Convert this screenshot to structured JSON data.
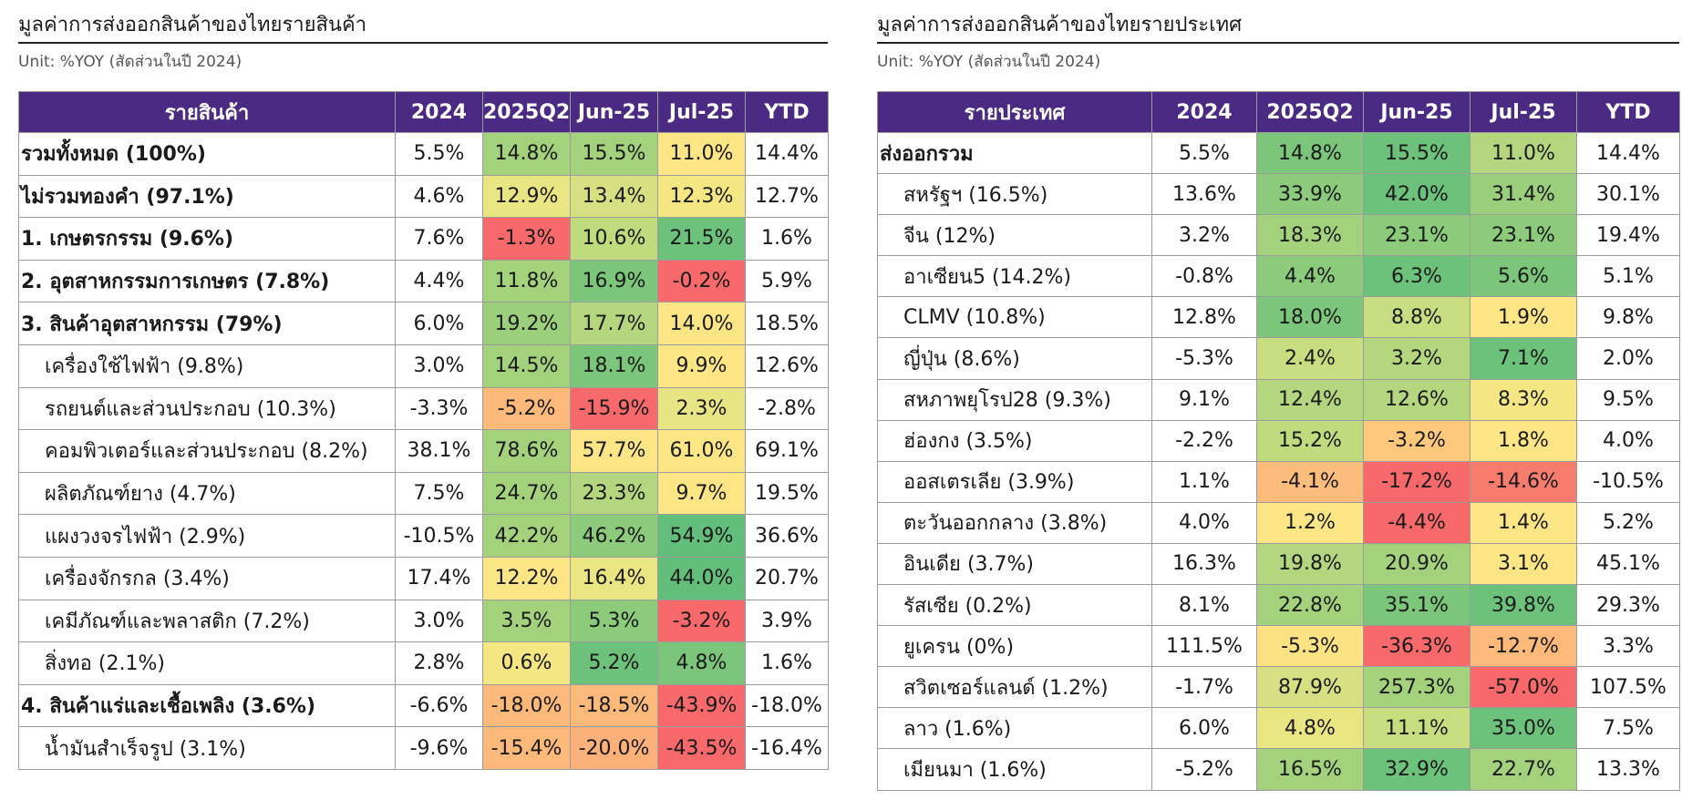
{
  "left": {
    "title": "มูลค่าการส่งออกสินค้าของไทยรายสินค้า",
    "unit": "Unit: %YOY (สัดส่วนในปี 2024)",
    "headers": [
      "รายสินค้า",
      "2024",
      "2025Q2",
      "Jun-25",
      "Jul-25",
      "YTD"
    ],
    "rows": [
      {
        "name": "รวมทั้งหมด (100%)",
        "values": [
          "5.5%",
          "14.8%",
          "15.5%",
          "11.0%",
          "14.4%"
        ],
        "colors": [
          "#ffffff",
          "#a4d27c",
          "#a4d27c",
          "#fbe584",
          "#ffffff"
        ]
      },
      {
        "name": "ไม่รวมทองคำ (97.1%)",
        "values": [
          "4.6%",
          "12.9%",
          "13.4%",
          "12.3%",
          "12.7%"
        ],
        "colors": [
          "#ffffff",
          "#e9e583",
          "#d6df81",
          "#f4e783",
          "#ffffff"
        ]
      },
      {
        "name": "1. เกษตรกรรม (9.6%)",
        "values": [
          "7.6%",
          "-1.3%",
          "10.6%",
          "21.5%",
          "1.6%"
        ],
        "colors": [
          "#ffffff",
          "#f8696b",
          "#c0da7e",
          "#6cc17b",
          "#ffffff"
        ]
      },
      {
        "name": "2. อุตสาหกรรมการเกษตร (7.8%)",
        "values": [
          "4.4%",
          "11.8%",
          "16.9%",
          "-0.2%",
          "5.9%"
        ],
        "colors": [
          "#ffffff",
          "#a4d27c",
          "#7cc67c",
          "#f8696b",
          "#ffffff"
        ]
      },
      {
        "name": "3. สินค้าอุตสาหกรรม (79%)",
        "values": [
          "6.0%",
          "19.2%",
          "17.7%",
          "14.0%",
          "18.5%"
        ],
        "colors": [
          "#ffffff",
          "#9ccf7c",
          "#b4d67e",
          "#fbe584",
          "#ffffff"
        ]
      },
      {
        "name": "เครื่องใช้ไฟฟ้า (9.8%)",
        "values": [
          "3.0%",
          "14.5%",
          "18.1%",
          "9.9%",
          "12.6%"
        ],
        "colors": [
          "#ffffff",
          "#a4d27c",
          "#7cc67c",
          "#fbe584",
          "#ffffff"
        ]
      },
      {
        "name": "รถยนต์และส่วนประกอบ (10.3%)",
        "values": [
          "-3.3%",
          "-5.2%",
          "-15.9%",
          "2.3%",
          "-2.8%"
        ],
        "colors": [
          "#ffffff",
          "#fcb97a",
          "#f8696b",
          "#e6e483",
          "#ffffff"
        ]
      },
      {
        "name": "คอมพิวเตอร์และส่วนประกอบ (8.2%)",
        "values": [
          "38.1%",
          "78.6%",
          "57.7%",
          "61.0%",
          "69.1%"
        ],
        "colors": [
          "#ffffff",
          "#a4d27c",
          "#fbe584",
          "#fbe584",
          "#ffffff"
        ]
      },
      {
        "name": "ผลิตภัณฑ์ยาง (4.7%)",
        "values": [
          "7.5%",
          "24.7%",
          "23.3%",
          "9.7%",
          "19.5%"
        ],
        "colors": [
          "#ffffff",
          "#a4d27c",
          "#b4d67e",
          "#fbe584",
          "#ffffff"
        ]
      },
      {
        "name": "แผงวงจรไฟฟ้า (2.9%)",
        "values": [
          "-10.5%",
          "42.2%",
          "46.2%",
          "54.9%",
          "36.6%"
        ],
        "colors": [
          "#ffffff",
          "#a4d27c",
          "#8ccb7c",
          "#63be7b",
          "#ffffff"
        ]
      },
      {
        "name": "เครื่องจักรกล (3.4%)",
        "values": [
          "17.4%",
          "12.2%",
          "16.4%",
          "44.0%",
          "20.7%"
        ],
        "colors": [
          "#ffffff",
          "#fbe584",
          "#e9e583",
          "#63be7b",
          "#ffffff"
        ]
      },
      {
        "name": "เคมีภัณฑ์และพลาสติก (7.2%)",
        "values": [
          "3.0%",
          "3.5%",
          "5.3%",
          "-3.2%",
          "3.9%"
        ],
        "colors": [
          "#ffffff",
          "#a4d27c",
          "#8ccb7c",
          "#f8696b",
          "#ffffff"
        ]
      },
      {
        "name": "สิ่งทอ (2.1%)",
        "values": [
          "2.8%",
          "0.6%",
          "5.2%",
          "4.8%",
          "1.6%"
        ],
        "colors": [
          "#ffffff",
          "#f4e783",
          "#6cc17b",
          "#7cc67c",
          "#ffffff"
        ]
      },
      {
        "name": "4. สินค้าแร่และเชื้อเพลิง (3.6%)",
        "values": [
          "-6.6%",
          "-18.0%",
          "-18.5%",
          "-43.9%",
          "-18.0%"
        ],
        "colors": [
          "#ffffff",
          "#fcb97a",
          "#fcb97a",
          "#f8696b",
          "#ffffff"
        ]
      },
      {
        "name": "น้ำมันสำเร็จรูป (3.1%)",
        "values": [
          "-9.6%",
          "-15.4%",
          "-20.0%",
          "-43.5%",
          "-16.4%"
        ],
        "colors": [
          "#ffffff",
          "#fcb97a",
          "#fcb07a",
          "#f8696b",
          "#ffffff"
        ]
      }
    ]
  },
  "right": {
    "title": "มูลค่าการส่งออกสินค้าของไทยรายประเทศ",
    "unit": "Unit: %YOY (สัดส่วนในปี 2024)",
    "headers": [
      "รายประเทศ",
      "2024",
      "2025Q2",
      "Jun-25",
      "Jul-25",
      "YTD"
    ],
    "rows": [
      {
        "name": "ส่งออกรวม",
        "values": [
          "5.5%",
          "14.8%",
          "15.5%",
          "11.0%",
          "14.4%"
        ],
        "colors": [
          "#ffffff",
          "#7cc67c",
          "#6cc17b",
          "#b4d67e",
          "#ffffff"
        ]
      },
      {
        "name": "สหรัฐฯ (16.5%)",
        "values": [
          "13.6%",
          "33.9%",
          "42.0%",
          "31.4%",
          "30.1%"
        ],
        "colors": [
          "#ffffff",
          "#8ccb7c",
          "#6cc17b",
          "#9ccf7c",
          "#ffffff"
        ]
      },
      {
        "name": "จีน (12%)",
        "values": [
          "3.2%",
          "18.3%",
          "23.1%",
          "23.1%",
          "19.4%"
        ],
        "colors": [
          "#ffffff",
          "#a4d27c",
          "#8ccb7c",
          "#8ccb7c",
          "#ffffff"
        ]
      },
      {
        "name": "อาเซียน5 (14.2%)",
        "values": [
          "-0.8%",
          "4.4%",
          "6.3%",
          "5.6%",
          "5.1%"
        ],
        "colors": [
          "#ffffff",
          "#8ccb7c",
          "#6cc17b",
          "#7cc67c",
          "#ffffff"
        ]
      },
      {
        "name": "CLMV (10.8%)",
        "values": [
          "12.8%",
          "18.0%",
          "8.8%",
          "1.9%",
          "9.8%"
        ],
        "colors": [
          "#ffffff",
          "#7cc67c",
          "#c8dc80",
          "#fbe584",
          "#ffffff"
        ]
      },
      {
        "name": "ญี่ปุ่น (8.6%)",
        "values": [
          "-5.3%",
          "2.4%",
          "3.2%",
          "7.1%",
          "2.0%"
        ],
        "colors": [
          "#ffffff",
          "#c8dc80",
          "#b4d67e",
          "#6cc17b",
          "#ffffff"
        ]
      },
      {
        "name": "สหภาพยุโรป28 (9.3%)",
        "values": [
          "9.1%",
          "12.4%",
          "12.6%",
          "8.3%",
          "9.5%"
        ],
        "colors": [
          "#ffffff",
          "#b4d67e",
          "#b4d67e",
          "#f4e783",
          "#ffffff"
        ]
      },
      {
        "name": "ฮ่องกง (3.5%)",
        "values": [
          "-2.2%",
          "15.2%",
          "-3.2%",
          "1.8%",
          "4.0%"
        ],
        "colors": [
          "#ffffff",
          "#c0da7e",
          "#fcc97c",
          "#fbe584",
          "#ffffff"
        ]
      },
      {
        "name": "ออสเตรเลีย (3.9%)",
        "values": [
          "1.1%",
          "-4.1%",
          "-17.2%",
          "-14.6%",
          "-10.5%"
        ],
        "colors": [
          "#ffffff",
          "#fcbc7b",
          "#f8696b",
          "#f87c6e",
          "#ffffff"
        ]
      },
      {
        "name": "ตะวันออกกลาง (3.8%)",
        "values": [
          "4.0%",
          "1.2%",
          "-4.4%",
          "1.4%",
          "5.2%"
        ],
        "colors": [
          "#ffffff",
          "#fbe584",
          "#f8696b",
          "#fbe584",
          "#ffffff"
        ]
      },
      {
        "name": "อินเดีย (3.7%)",
        "values": [
          "16.3%",
          "19.8%",
          "20.9%",
          "3.1%",
          "45.1%"
        ],
        "colors": [
          "#ffffff",
          "#b4d67e",
          "#a4d27c",
          "#fbe584",
          "#ffffff"
        ]
      },
      {
        "name": "รัสเซีย (0.2%)",
        "values": [
          "8.1%",
          "22.8%",
          "35.1%",
          "39.8%",
          "29.3%"
        ],
        "colors": [
          "#ffffff",
          "#a4d27c",
          "#7cc67c",
          "#6cc17b",
          "#ffffff"
        ]
      },
      {
        "name": "ยูเครน (0%)",
        "values": [
          "111.5%",
          "-5.3%",
          "-36.3%",
          "-12.7%",
          "3.3%"
        ],
        "colors": [
          "#ffffff",
          "#fde284",
          "#f8696b",
          "#fcb97a",
          "#ffffff"
        ]
      },
      {
        "name": "สวิตเซอร์แลนด์ (1.2%)",
        "values": [
          "-1.7%",
          "87.9%",
          "257.3%",
          "-57.0%",
          "107.5%"
        ],
        "colors": [
          "#ffffff",
          "#d6df81",
          "#a4d27c",
          "#f8696b",
          "#ffffff"
        ]
      },
      {
        "name": "ลาว (1.6%)",
        "values": [
          "6.0%",
          "4.8%",
          "11.1%",
          "35.0%",
          "7.5%"
        ],
        "colors": [
          "#ffffff",
          "#e9e583",
          "#c8dc80",
          "#6cc17b",
          "#ffffff"
        ]
      },
      {
        "name": "เมียนมา (1.6%)",
        "values": [
          "-5.2%",
          "16.5%",
          "32.9%",
          "22.7%",
          "13.3%"
        ],
        "colors": [
          "#ffffff",
          "#a4d27c",
          "#6cc17b",
          "#a4d27c",
          "#ffffff"
        ]
      }
    ]
  }
}
